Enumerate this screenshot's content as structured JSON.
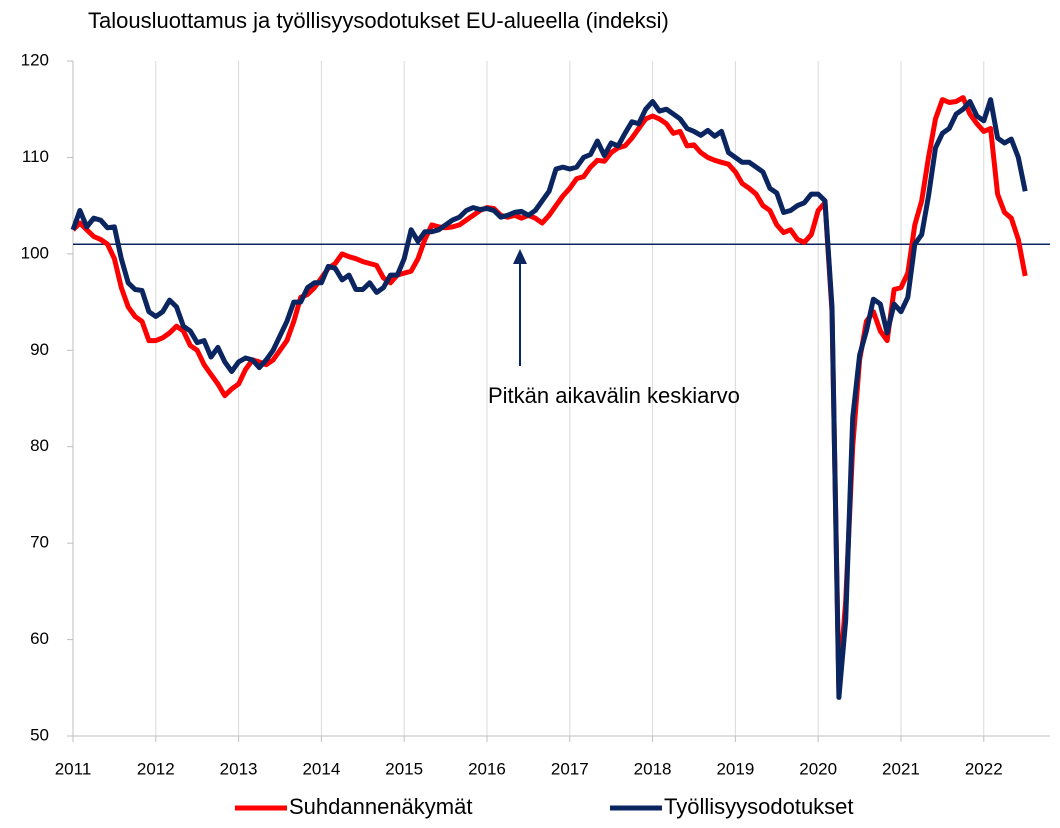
{
  "chart_data": {
    "type": "line",
    "title": "Talousluottamus ja työllisyysodotukset EU-alueella (indeksi)",
    "x": [
      2011,
      2011.083,
      2011.167,
      2011.25,
      2011.333,
      2011.417,
      2011.5,
      2011.583,
      2011.667,
      2011.75,
      2011.833,
      2011.917,
      2012,
      2012.083,
      2012.167,
      2012.25,
      2012.333,
      2012.417,
      2012.5,
      2012.583,
      2012.667,
      2012.75,
      2012.833,
      2012.917,
      2013,
      2013.083,
      2013.167,
      2013.25,
      2013.333,
      2013.417,
      2013.5,
      2013.583,
      2013.667,
      2013.75,
      2013.833,
      2013.917,
      2014,
      2014.083,
      2014.167,
      2014.25,
      2014.333,
      2014.417,
      2014.5,
      2014.583,
      2014.667,
      2014.75,
      2014.833,
      2014.917,
      2015,
      2015.083,
      2015.167,
      2015.25,
      2015.333,
      2015.417,
      2015.5,
      2015.583,
      2015.667,
      2015.75,
      2015.833,
      2015.917,
      2016,
      2016.083,
      2016.167,
      2016.25,
      2016.333,
      2016.417,
      2016.5,
      2016.583,
      2016.667,
      2016.75,
      2016.833,
      2016.917,
      2017,
      2017.083,
      2017.167,
      2017.25,
      2017.333,
      2017.417,
      2017.5,
      2017.583,
      2017.667,
      2017.75,
      2017.833,
      2017.917,
      2018,
      2018.083,
      2018.167,
      2018.25,
      2018.333,
      2018.417,
      2018.5,
      2018.583,
      2018.667,
      2018.75,
      2018.833,
      2018.917,
      2019,
      2019.083,
      2019.167,
      2019.25,
      2019.333,
      2019.417,
      2019.5,
      2019.583,
      2019.667,
      2019.75,
      2019.833,
      2019.917,
      2020,
      2020.083,
      2020.167,
      2020.25,
      2020.333,
      2020.417,
      2020.5,
      2020.583,
      2020.667,
      2020.75,
      2020.833,
      2020.917,
      2021,
      2021.083,
      2021.167,
      2021.25,
      2021.333,
      2021.417,
      2021.5,
      2021.583,
      2021.667,
      2021.75,
      2021.833,
      2021.917,
      2022,
      2022.083,
      2022.167,
      2022.25,
      2022.333,
      2022.417,
      2022.5
    ],
    "series": [
      {
        "name": "Suhdannenäkymät",
        "color": "#ff0000",
        "values": [
          102.5,
          103.2,
          102.5,
          101.8,
          101.5,
          101,
          99.5,
          96.5,
          94.5,
          93.5,
          93,
          91,
          91,
          91.3,
          91.8,
          92.5,
          92,
          90.5,
          90,
          88.5,
          87.5,
          86.5,
          85.3,
          86,
          86.5,
          88,
          89,
          88.8,
          88.5,
          89,
          90,
          91,
          93,
          95.5,
          95.8,
          96.5,
          97.5,
          98.5,
          99,
          100,
          99.7,
          99.5,
          99.2,
          99,
          98.8,
          97.5,
          97,
          97.8,
          98,
          98.2,
          99.5,
          101.5,
          103,
          102.8,
          102.7,
          102.8,
          103,
          103.5,
          104,
          104.5,
          104.8,
          104.7,
          104,
          103.8,
          104,
          103.7,
          104,
          103.7,
          103.2,
          104,
          105,
          106,
          106.8,
          107.8,
          108,
          109,
          109.7,
          109.6,
          110.5,
          111,
          111.2,
          112,
          113,
          114,
          114.3,
          114,
          113.5,
          112.5,
          112.7,
          111.2,
          111.3,
          110.5,
          110,
          109.7,
          109.5,
          109.3,
          108.5,
          107.3,
          106.8,
          106.2,
          105,
          104.5,
          103,
          102.2,
          102.5,
          101.5,
          101.2,
          102,
          104.5,
          105.3,
          94,
          55,
          64,
          80,
          89,
          93,
          94,
          92,
          91,
          96.3,
          96.5,
          98,
          103,
          105.5,
          110,
          114,
          116,
          115.7,
          115.8,
          116.2,
          114.5,
          113.5,
          112.7,
          113,
          106.2,
          104.3,
          103.7,
          101.5,
          97.7
        ]
      },
      {
        "name": "Työllisyysodotukset",
        "color": "#0b2560",
        "values": [
          102.5,
          104.5,
          102.8,
          103.7,
          103.5,
          102.7,
          102.8,
          99.5,
          97,
          96.3,
          96.2,
          94,
          93.5,
          94,
          95.2,
          94.5,
          92.5,
          92,
          90.8,
          91,
          89.3,
          90.3,
          88.8,
          87.8,
          88.8,
          89.2,
          89,
          88.2,
          89,
          90,
          91.5,
          93,
          95,
          95,
          96.5,
          97,
          97,
          98.7,
          98.5,
          97.3,
          97.8,
          96.3,
          96.3,
          97,
          96,
          96.5,
          97.8,
          97.8,
          99.5,
          102.5,
          101.3,
          102.3,
          102.3,
          102.5,
          103,
          103.5,
          103.8,
          104.5,
          104.8,
          104.6,
          104.7,
          104.5,
          103.8,
          104,
          104.3,
          104.4,
          104,
          104.5,
          105.5,
          106.5,
          108.8,
          109,
          108.8,
          109,
          110,
          110.3,
          111.7,
          110.2,
          111.5,
          111.2,
          112.5,
          113.7,
          113.5,
          115,
          115.8,
          114.8,
          115,
          114.5,
          114,
          113,
          112.7,
          112.3,
          112.8,
          112.2,
          112.7,
          110.5,
          110,
          109.5,
          109.5,
          109,
          108.5,
          106.8,
          106.3,
          104.3,
          104.5,
          105,
          105.3,
          106.2,
          106.2,
          105.5,
          94.5,
          54,
          62,
          83,
          89.5,
          92,
          95.3,
          94.8,
          91.8,
          94.8,
          94,
          95.5,
          101,
          102,
          106,
          111,
          112.5,
          113,
          114.5,
          115,
          115.8,
          114.3,
          113.8,
          116,
          112,
          111.5,
          111.9,
          110,
          106.5
        ]
      }
    ],
    "xlim": [
      2011,
      2022.8
    ],
    "xticks": [
      2011,
      2012,
      2013,
      2014,
      2015,
      2016,
      2017,
      2018,
      2019,
      2020,
      2021,
      2022
    ],
    "ylim": [
      50,
      120
    ],
    "yticks": [
      50,
      60,
      70,
      80,
      90,
      100,
      110,
      120
    ],
    "reference_line": {
      "value": 101,
      "label": "Pitkän aikavälin keskiarvo",
      "color": "#0b2560"
    },
    "grid": "x",
    "legend": "bottom"
  }
}
